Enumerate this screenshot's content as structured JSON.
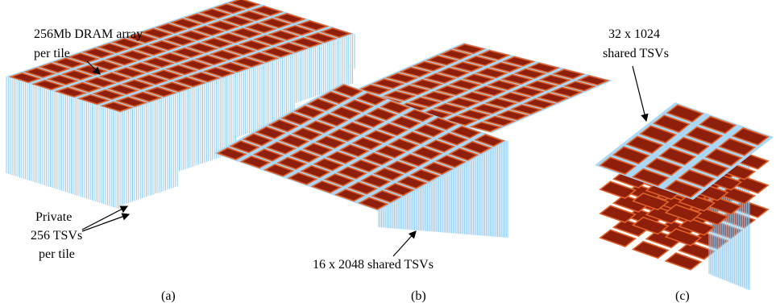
{
  "panels": [
    {
      "label": "(a)",
      "notes": [
        [
          "256Mb DRAM array",
          "per tile"
        ],
        [
          "Private",
          "256 TSVs",
          "per tile"
        ]
      ]
    },
    {
      "label": "(b)",
      "notes": [
        [
          "16 x 2048 shared TSVs"
        ]
      ]
    },
    {
      "label": "(c)",
      "notes": [
        [
          "32 x 1024",
          "shared TSVs"
        ]
      ]
    }
  ]
}
